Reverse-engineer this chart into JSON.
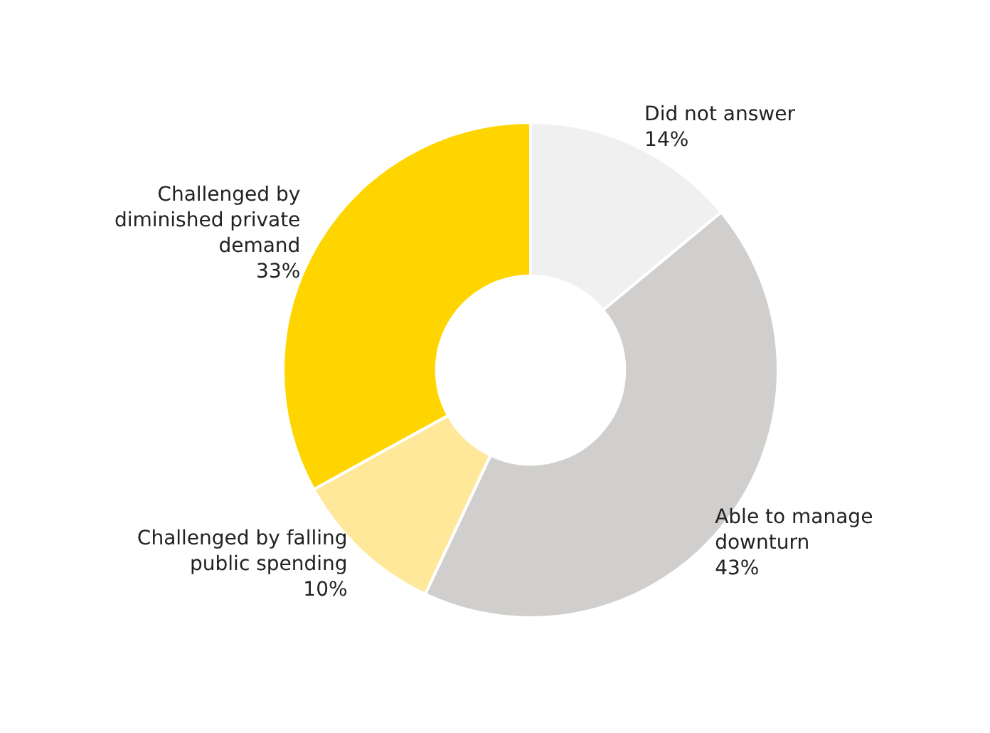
{
  "chart_data": {
    "type": "donut",
    "categories": [
      "Did not answer",
      "Able to manage downturn",
      "Challenged by falling public spending",
      "Challenged by diminished private demand"
    ],
    "values": [
      14,
      43,
      10,
      33
    ],
    "value_labels": [
      "14%",
      "43%",
      "10%",
      "33%"
    ],
    "colors": [
      "#f0f0f0",
      "#d0cfcd",
      "#ffe89a",
      "#ffd500"
    ],
    "legend": false
  }
}
